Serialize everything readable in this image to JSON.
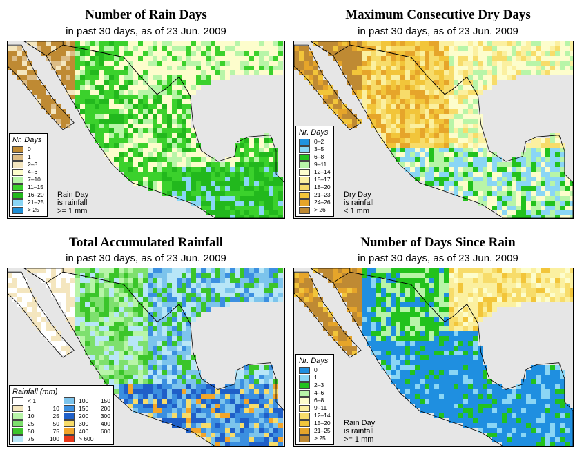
{
  "panels": [
    {
      "id": "rain-days",
      "title": "Number of Rain Days",
      "subtitle": "in past 30 days, as of  23 Jun. 2009",
      "scheme": "raindays",
      "legend_title": "Nr. Days",
      "legend": [
        {
          "label": "0",
          "color": "#bf8a33"
        },
        {
          "label": "1",
          "color": "#dcbc86"
        },
        {
          "label": "2–3",
          "color": "#f4e6bf"
        },
        {
          "label": "4–6",
          "color": "#fdfdcc"
        },
        {
          "label": "7–10",
          "color": "#b8f5a8"
        },
        {
          "label": "11–15",
          "color": "#3bd12c"
        },
        {
          "label": "16–20",
          "color": "#22b81d"
        },
        {
          "label": "21–25",
          "color": "#8ad6f5"
        },
        {
          "label": "> 25",
          "color": "#1f8fd6"
        }
      ],
      "note": [
        "Rain Day",
        "is rainfall",
        ">= 1 mm"
      ]
    },
    {
      "id": "dry-days",
      "title": "Maximum Consecutive Dry Days",
      "subtitle": "in past 30 days, as of  23 Jun. 2009",
      "scheme": "drydays",
      "legend_title": "Nr. Days",
      "legend": [
        {
          "label": "0–2",
          "color": "#2093e0"
        },
        {
          "label": "3–5",
          "color": "#8ad6f5"
        },
        {
          "label": "6–8",
          "color": "#22c21d"
        },
        {
          "label": "9–11",
          "color": "#b8f5a8"
        },
        {
          "label": "12–14",
          "color": "#fdfdcc"
        },
        {
          "label": "15–17",
          "color": "#fbf0a0"
        },
        {
          "label": "18–20",
          "color": "#f7dc6a"
        },
        {
          "label": "21–23",
          "color": "#f2c53a"
        },
        {
          "label": "24–26",
          "color": "#e6a52a"
        },
        {
          "label": "> 26",
          "color": "#bf8a33"
        }
      ],
      "note": [
        "Dry Day",
        "is rainfall",
        "< 1 mm"
      ]
    },
    {
      "id": "total-rainfall",
      "title": "Total Accumulated Rainfall",
      "subtitle": "in past 30 days, as of  23 Jun. 2009",
      "scheme": "rainfall",
      "legend_title": "Rainfall (mm)",
      "legend_cols": [
        [
          {
            "lo": "< 1",
            "hi": "",
            "color": "#ffffff"
          },
          {
            "lo": "1",
            "hi": "10",
            "color": "#f4e6bf"
          },
          {
            "lo": "10",
            "hi": "25",
            "color": "#b8f5a8"
          },
          {
            "lo": "25",
            "hi": "50",
            "color": "#7ee06e"
          },
          {
            "lo": "50",
            "hi": "75",
            "color": "#3bc52a"
          },
          {
            "lo": "75",
            "hi": "100",
            "color": "#b8e6f7"
          }
        ],
        [
          {
            "lo": "100",
            "hi": "150",
            "color": "#7cc4ec"
          },
          {
            "lo": "150",
            "hi": "200",
            "color": "#3b8fe0"
          },
          {
            "lo": "200",
            "hi": "300",
            "color": "#1f5fc8"
          },
          {
            "lo": "300",
            "hi": "400",
            "color": "#f7dc6a"
          },
          {
            "lo": "400",
            "hi": "600",
            "color": "#f2a52a"
          },
          {
            "lo": "> 600",
            "hi": "",
            "color": "#e8381a"
          }
        ]
      ]
    },
    {
      "id": "days-since-rain",
      "title": "Number of Days Since Rain",
      "subtitle": "in past 30 days, as of  23 Jun. 2009",
      "scheme": "sincerain",
      "legend_title": "Nr. Days",
      "legend": [
        {
          "label": "0",
          "color": "#1f8fe0"
        },
        {
          "label": "1",
          "color": "#8ad6f5"
        },
        {
          "label": "2–3",
          "color": "#22c21d"
        },
        {
          "label": "4–6",
          "color": "#b8f5a8"
        },
        {
          "label": "6–8",
          "color": "#fdfdcc"
        },
        {
          "label": "9–11",
          "color": "#fbf0a0"
        },
        {
          "label": "12–14",
          "color": "#f7dc6a"
        },
        {
          "label": "15–20",
          "color": "#f2c53a"
        },
        {
          "label": "21–25",
          "color": "#e6a52a"
        },
        {
          "label": "> 25",
          "color": "#bf8a33"
        }
      ],
      "note": [
        "Rain Day",
        "is rainfall",
        ">= 1 mm"
      ]
    }
  ]
}
